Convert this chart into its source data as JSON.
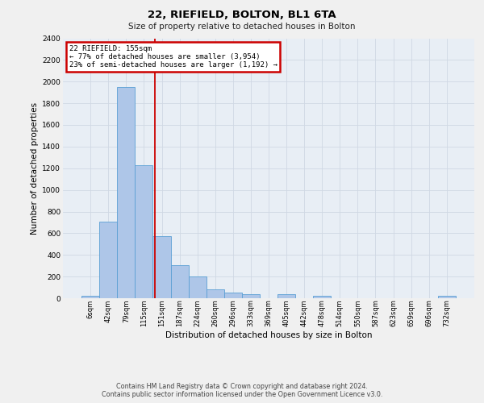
{
  "title1": "22, RIEFIELD, BOLTON, BL1 6TA",
  "title2": "Size of property relative to detached houses in Bolton",
  "xlabel": "Distribution of detached houses by size in Bolton",
  "ylabel": "Number of detached properties",
  "categories": [
    "6sqm",
    "42sqm",
    "79sqm",
    "115sqm",
    "151sqm",
    "187sqm",
    "224sqm",
    "260sqm",
    "296sqm",
    "333sqm",
    "369sqm",
    "405sqm",
    "442sqm",
    "478sqm",
    "514sqm",
    "550sqm",
    "587sqm",
    "623sqm",
    "659sqm",
    "696sqm",
    "732sqm"
  ],
  "values": [
    20,
    710,
    1950,
    1230,
    575,
    305,
    200,
    85,
    50,
    35,
    0,
    40,
    0,
    20,
    0,
    0,
    0,
    0,
    0,
    0,
    20
  ],
  "bar_color": "#aec6e8",
  "bar_edge_color": "#5a9fd4",
  "vline_pos": 3.62,
  "vline_color": "#cc0000",
  "annotation_line1": "22 RIEFIELD: 155sqm",
  "annotation_line2": "← 77% of detached houses are smaller (3,954)",
  "annotation_line3": "23% of semi-detached houses are larger (1,192) →",
  "annotation_box_facecolor": "#ffffff",
  "annotation_box_edgecolor": "#cc0000",
  "ylim": [
    0,
    2400
  ],
  "yticks": [
    0,
    200,
    400,
    600,
    800,
    1000,
    1200,
    1400,
    1600,
    1800,
    2000,
    2200,
    2400
  ],
  "grid_color": "#d0d8e4",
  "ax_facecolor": "#e8eef5",
  "fig_facecolor": "#f0f0f0",
  "footer1": "Contains HM Land Registry data © Crown copyright and database right 2024.",
  "footer2": "Contains public sector information licensed under the Open Government Licence v3.0."
}
